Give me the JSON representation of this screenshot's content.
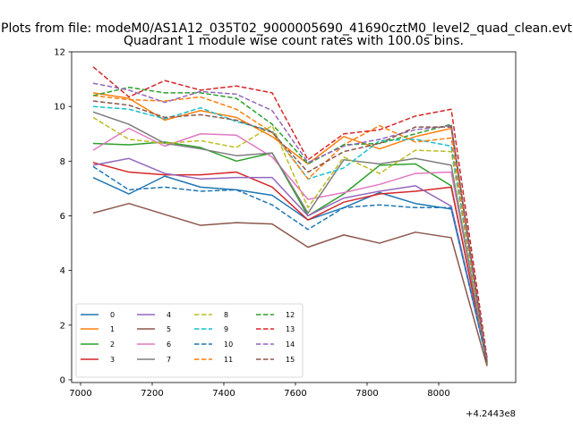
{
  "chart_data": {
    "type": "line",
    "suptitle": "Plots from file: modeM0/AS1A12_035T02_9000005690_41690cztM0_level2_quad_clean.evt",
    "title": "Quadrant 1 module wise count rates with 100.0s bins.",
    "xlabel": "",
    "ylabel": "",
    "x_offset_label": "+4.2443e8",
    "xlim": [
      6975,
      8215
    ],
    "ylim": [
      -0.1,
      12
    ],
    "xticks": [
      7000,
      7200,
      7400,
      7600,
      7800,
      8000
    ],
    "yticks": [
      0,
      2,
      4,
      6,
      8,
      10,
      12
    ],
    "x": [
      7035,
      7135,
      7235,
      7335,
      7435,
      7535,
      7635,
      7735,
      7835,
      7935,
      8035,
      8135
    ],
    "legend": {
      "placement": "lower-left",
      "columns": 4
    },
    "series": [
      {
        "name": "0",
        "color": "#1f77b4",
        "dashed": false,
        "values": [
          7.4,
          6.8,
          7.45,
          7.05,
          6.95,
          6.75,
          5.85,
          6.3,
          6.85,
          6.45,
          6.25,
          0.7
        ]
      },
      {
        "name": "1",
        "color": "#ff7f0e",
        "dashed": false,
        "values": [
          10.5,
          10.3,
          9.5,
          9.85,
          9.6,
          8.9,
          7.9,
          8.9,
          8.45,
          8.9,
          9.2,
          0.6
        ]
      },
      {
        "name": "2",
        "color": "#2ca02c",
        "dashed": false,
        "values": [
          8.65,
          8.6,
          8.7,
          8.5,
          8.0,
          8.3,
          6.0,
          6.8,
          7.85,
          7.9,
          7.1,
          0.6
        ]
      },
      {
        "name": "3",
        "color": "#d62728",
        "dashed": false,
        "values": [
          7.95,
          7.6,
          7.5,
          7.5,
          7.6,
          7.05,
          5.85,
          6.5,
          6.8,
          6.9,
          7.05,
          0.7
        ]
      },
      {
        "name": "4",
        "color": "#9467bd",
        "dashed": false,
        "values": [
          7.85,
          8.1,
          7.55,
          7.35,
          7.4,
          7.4,
          6.0,
          6.65,
          6.9,
          7.1,
          6.35,
          0.75
        ]
      },
      {
        "name": "5",
        "color": "#8c564b",
        "dashed": false,
        "values": [
          6.1,
          6.45,
          6.05,
          5.65,
          5.75,
          5.7,
          4.85,
          5.3,
          5.0,
          5.4,
          5.2,
          0.5
        ]
      },
      {
        "name": "6",
        "color": "#e377c2",
        "dashed": false,
        "values": [
          8.4,
          9.2,
          8.55,
          9.0,
          8.95,
          8.15,
          6.6,
          6.85,
          7.15,
          7.55,
          7.6,
          0.7
        ]
      },
      {
        "name": "7",
        "color": "#7f7f7f",
        "dashed": false,
        "values": [
          9.8,
          9.35,
          8.65,
          8.45,
          8.2,
          8.3,
          6.1,
          8.05,
          7.9,
          8.1,
          7.85,
          0.6
        ]
      },
      {
        "name": "8",
        "color": "#bcbd22",
        "dashed": true,
        "values": [
          9.6,
          8.8,
          8.65,
          8.75,
          8.5,
          9.3,
          6.3,
          8.15,
          7.55,
          8.4,
          8.35,
          0.6
        ]
      },
      {
        "name": "9",
        "color": "#17becf",
        "dashed": true,
        "values": [
          10.0,
          9.9,
          9.55,
          9.95,
          9.45,
          9.1,
          7.35,
          7.75,
          8.75,
          8.8,
          8.55,
          0.65
        ]
      },
      {
        "name": "10",
        "color": "#1f77b4",
        "dashed": true,
        "values": [
          7.8,
          6.95,
          7.05,
          6.9,
          6.95,
          6.4,
          5.5,
          6.3,
          6.4,
          6.3,
          6.3,
          0.65
        ]
      },
      {
        "name": "11",
        "color": "#ff7f0e",
        "dashed": true,
        "values": [
          10.4,
          10.25,
          10.2,
          10.35,
          9.9,
          9.05,
          7.35,
          8.6,
          9.3,
          8.7,
          8.85,
          0.6
        ]
      },
      {
        "name": "12",
        "color": "#2ca02c",
        "dashed": true,
        "values": [
          10.4,
          10.7,
          10.5,
          10.5,
          10.3,
          9.35,
          7.9,
          8.6,
          8.65,
          9.0,
          9.35,
          0.6
        ]
      },
      {
        "name": "13",
        "color": "#d62728",
        "dashed": true,
        "values": [
          11.45,
          10.35,
          10.95,
          10.6,
          10.75,
          10.5,
          8.05,
          9.0,
          9.15,
          9.65,
          9.9,
          0.8
        ]
      },
      {
        "name": "14",
        "color": "#9467bd",
        "dashed": true,
        "values": [
          10.85,
          10.6,
          10.15,
          10.55,
          10.45,
          9.85,
          7.95,
          8.55,
          8.8,
          9.15,
          9.3,
          0.65
        ]
      },
      {
        "name": "15",
        "color": "#8c564b",
        "dashed": true,
        "values": [
          10.2,
          10.05,
          9.6,
          9.7,
          9.5,
          9.05,
          7.6,
          8.35,
          8.65,
          9.25,
          9.25,
          0.55
        ]
      }
    ]
  }
}
